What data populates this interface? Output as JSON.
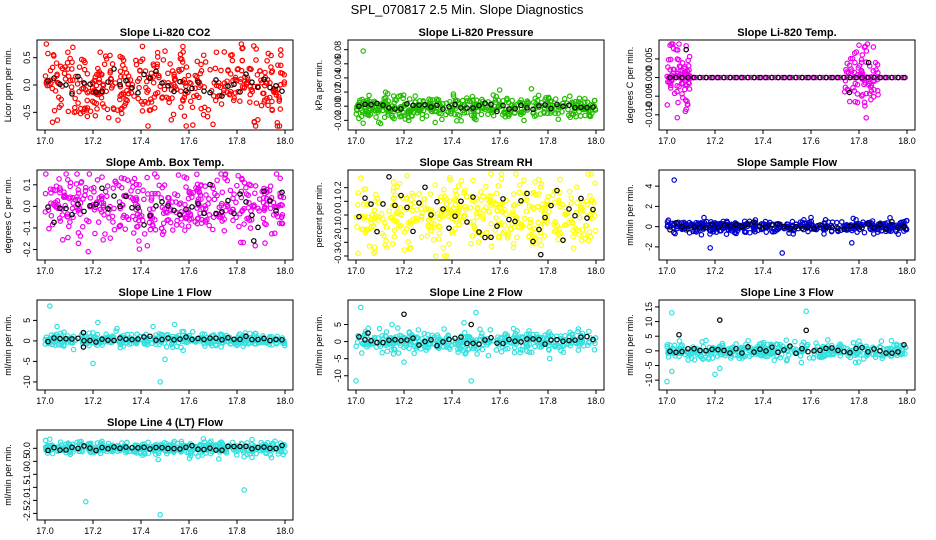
{
  "figure": {
    "title": "SPL_070817  2.5 Min. Slope Diagnostics"
  },
  "x_ticks": [
    "17.0",
    "17.2",
    "17.4",
    "17.6",
    "17.8",
    "18.0"
  ],
  "chart_data": [
    {
      "type": "scatter",
      "title": "Slope Li-820 CO2",
      "xlabel": "",
      "ylabel": "Licor ppm per min.",
      "xlim": [
        17.0,
        18.0
      ],
      "ylim": [
        -0.75,
        0.75
      ],
      "yticks": [
        -0.5,
        0.0,
        0.5
      ],
      "ytick_labels": [
        "-0.5",
        "0.0",
        "0.5"
      ],
      "series_color": "#ff0000",
      "dense_center": 0.0,
      "dense_spread": 0.32,
      "dense_count": 420,
      "black_center": 0.0,
      "black_spread": 0.12,
      "black_count": 40,
      "outliers": [
        [
          17.23,
          0.6
        ],
        [
          17.5,
          0.62
        ],
        [
          17.7,
          -0.72
        ],
        [
          17.88,
          0.66
        ],
        [
          17.32,
          -0.52
        ]
      ],
      "black_outliers": []
    },
    {
      "type": "scatter",
      "title": "Slope Li-820 Pressure",
      "xlabel": "",
      "ylabel": "kPa per min.",
      "xlim": [
        17.0,
        18.0
      ],
      "ylim": [
        -0.028,
        0.088
      ],
      "yticks": [
        -0.02,
        0.0,
        0.02,
        0.04,
        0.06,
        0.08
      ],
      "ytick_labels": [
        "-0.02",
        "0.00",
        "0.02",
        "0.04",
        "0.06",
        "0.08"
      ],
      "series_color": "#22bb00",
      "dense_center": -0.001,
      "dense_spread": 0.008,
      "dense_count": 420,
      "black_center": -0.001,
      "black_spread": 0.003,
      "black_count": 40,
      "outliers": [
        [
          17.03,
          0.078
        ],
        [
          17.03,
          -0.024
        ],
        [
          17.22,
          -0.02
        ],
        [
          17.5,
          -0.019
        ],
        [
          17.7,
          -0.02
        ]
      ],
      "black_outliers": []
    },
    {
      "type": "scatter",
      "title": "Slope Li-820 Temp.",
      "xlabel": "",
      "ylabel": "degrees C per min.",
      "xlim": [
        17.0,
        18.0
      ],
      "ylim": [
        -0.013,
        0.009
      ],
      "yticks": [
        -0.01,
        -0.005,
        0.0,
        0.005
      ],
      "ytick_labels": [
        "-0.010",
        "-0.005",
        "0.000",
        "0.005"
      ],
      "series_color": "#ee00ee",
      "flat_value": 0.0,
      "active_ranges": [
        [
          17.0,
          17.1
        ],
        [
          17.74,
          17.88
        ]
      ],
      "dense_spread": 0.004,
      "dense_count": 160,
      "black_center": 0.0,
      "black_count": 40,
      "outliers": [
        [
          17.08,
          0.0085
        ],
        [
          17.08,
          -0.0085
        ],
        [
          17.83,
          -0.0108
        ],
        [
          17.86,
          0.0082
        ]
      ],
      "black_outliers": [
        [
          17.08,
          0.0075
        ],
        [
          17.76,
          -0.004
        ],
        [
          17.84,
          0.004
        ]
      ]
    },
    {
      "type": "scatter",
      "title": "Slope Amb. Box Temp.",
      "xlabel": "",
      "ylabel": "degrees C per min.",
      "xlim": [
        17.0,
        18.0
      ],
      "ylim": [
        -0.23,
        0.15
      ],
      "yticks": [
        -0.2,
        -0.1,
        0.0,
        0.1
      ],
      "ytick_labels": [
        "-0.2",
        "-0.1",
        "0.0",
        "0.1"
      ],
      "series_color": "#ee00ee",
      "dense_center": 0.0,
      "dense_spread": 0.07,
      "dense_count": 420,
      "black_center": 0.0,
      "black_spread": 0.05,
      "black_count": 40,
      "outliers": [
        [
          17.18,
          -0.21
        ],
        [
          17.75,
          0.13
        ],
        [
          17.98,
          0.13
        ]
      ],
      "black_outliers": [
        [
          17.87,
          -0.16
        ]
      ]
    },
    {
      "type": "scatter",
      "title": "Slope Gas Stream RH",
      "xlabel": "",
      "ylabel": "percent per min.",
      "xlim": [
        17.0,
        18.0
      ],
      "ylim": [
        -0.3,
        0.3
      ],
      "yticks": [
        -0.3,
        -0.2,
        -0.1,
        0.0,
        0.1,
        0.2
      ],
      "ytick_labels": [
        "-0.3",
        "-0.2",
        "-0.1",
        "0.0",
        "0.1",
        "0.2"
      ],
      "series_color": "#ffff00",
      "dense_center": 0.0,
      "dense_spread": 0.13,
      "dense_count": 420,
      "black_center": 0.0,
      "black_spread": 0.1,
      "black_count": 40,
      "outliers": [
        [
          17.02,
          0.27
        ],
        [
          17.85,
          0.26
        ],
        [
          17.08,
          -0.27
        ]
      ],
      "black_outliers": [
        [
          17.77,
          -0.29
        ]
      ]
    },
    {
      "type": "scatter",
      "title": "Slope Sample Flow",
      "xlabel": "",
      "ylabel": "ml/min per min.",
      "xlim": [
        17.0,
        18.0
      ],
      "ylim": [
        -2.9,
        5.2
      ],
      "yticks": [
        -2,
        0,
        2,
        4
      ],
      "ytick_labels": [
        "-2",
        "0",
        "2",
        "4"
      ],
      "series_color": "#0000cc",
      "dense_center": 0.0,
      "dense_spread": 0.3,
      "dense_count": 420,
      "black_center": 0.0,
      "black_spread": 0.2,
      "black_count": 40,
      "outliers": [
        [
          17.03,
          4.6
        ],
        [
          17.18,
          -2.1
        ],
        [
          17.48,
          -2.6
        ],
        [
          17.6,
          0.9
        ],
        [
          17.77,
          -1.6
        ]
      ],
      "black_outliers": []
    },
    {
      "type": "scatter",
      "title": "Slope Line 1 Flow",
      "xlabel": "",
      "ylabel": "ml/min per min.",
      "xlim": [
        17.0,
        18.0
      ],
      "ylim": [
        -11,
        9
      ],
      "yticks": [
        -10,
        -5,
        0,
        5
      ],
      "ytick_labels": [
        "-10",
        "-5",
        "0",
        "5"
      ],
      "series_color": "#33e0e0",
      "dense_center": 0.2,
      "dense_spread": 0.8,
      "dense_count": 380,
      "black_center": 0.3,
      "black_spread": 0.3,
      "black_count": 40,
      "outliers": [
        [
          17.02,
          8.5
        ],
        [
          17.05,
          3.5
        ],
        [
          17.2,
          -5.5
        ],
        [
          17.22,
          4.5
        ],
        [
          17.48,
          -10
        ],
        [
          17.5,
          -4.5
        ],
        [
          17.54,
          4.0
        ],
        [
          17.45,
          3.5
        ],
        [
          17.3,
          3.0
        ]
      ],
      "black_outliers": [
        [
          17.16,
          2.0
        ],
        [
          17.16,
          -1.5
        ]
      ]
    },
    {
      "type": "scatter",
      "title": "Slope Line 2 Flow",
      "xlabel": "",
      "ylabel": "ml/min per min.",
      "xlim": [
        17.0,
        18.0
      ],
      "ylim": [
        -13,
        11
      ],
      "yticks": [
        -10,
        -5,
        0,
        5
      ],
      "ytick_labels": [
        "-10",
        "-5",
        "0",
        "5"
      ],
      "series_color": "#33e0e0",
      "dense_center": 0.0,
      "dense_spread": 1.5,
      "dense_count": 380,
      "black_center": 0.2,
      "black_spread": 0.6,
      "black_count": 40,
      "outliers": [
        [
          17.02,
          10
        ],
        [
          17.0,
          -11.5
        ],
        [
          17.2,
          -6
        ],
        [
          17.45,
          5.5
        ],
        [
          17.5,
          8.5
        ],
        [
          17.48,
          -11.5
        ],
        [
          17.15,
          5.0
        ]
      ],
      "black_outliers": [
        [
          17.05,
          2.5
        ],
        [
          17.2,
          8.0
        ],
        [
          17.48,
          5.0
        ]
      ]
    },
    {
      "type": "scatter",
      "title": "Slope Line 3 Flow",
      "xlabel": "",
      "ylabel": "ml/min per min.",
      "xlim": [
        17.0,
        18.0
      ],
      "ylim": [
        -12,
        16
      ],
      "yticks": [
        -10,
        -5,
        0,
        5,
        10,
        15
      ],
      "ytick_labels": [
        "-10",
        "-5",
        "0",
        "5",
        "10",
        "15"
      ],
      "series_color": "#33e0e0",
      "dense_center": 0.0,
      "dense_spread": 1.5,
      "dense_count": 380,
      "black_center": 0.0,
      "black_spread": 0.8,
      "black_count": 40,
      "outliers": [
        [
          17.02,
          13
        ],
        [
          17.0,
          -10.5
        ],
        [
          17.02,
          -7
        ],
        [
          17.2,
          -8
        ],
        [
          17.22,
          -6
        ],
        [
          17.58,
          13.5
        ],
        [
          17.56,
          -4
        ]
      ],
      "black_outliers": [
        [
          17.05,
          5.5
        ],
        [
          17.22,
          10.5
        ],
        [
          17.58,
          7.0
        ]
      ]
    },
    {
      "type": "scatter",
      "title": "Slope Line 4 (LT) Flow",
      "xlabel": "",
      "ylabel": "ml/min per min.",
      "xlim": [
        17.0,
        18.0
      ],
      "ylim": [
        -2.6,
        0.55
      ],
      "yticks": [
        -2.5,
        -2.0,
        -1.5,
        -1.0,
        -0.5,
        0.0
      ],
      "ytick_labels": [
        "-2.5",
        "-2.0",
        "-1.5",
        "-1.0",
        "-0.5",
        "0.0"
      ],
      "series_color": "#33e0e0",
      "dense_center": 0.0,
      "dense_spread": 0.12,
      "dense_count": 420,
      "black_center": 0.0,
      "black_spread": 0.06,
      "black_count": 40,
      "outliers": [
        [
          17.17,
          -2.05
        ],
        [
          17.48,
          -2.55
        ],
        [
          17.83,
          -1.6
        ],
        [
          17.02,
          0.35
        ]
      ],
      "black_outliers": []
    }
  ]
}
